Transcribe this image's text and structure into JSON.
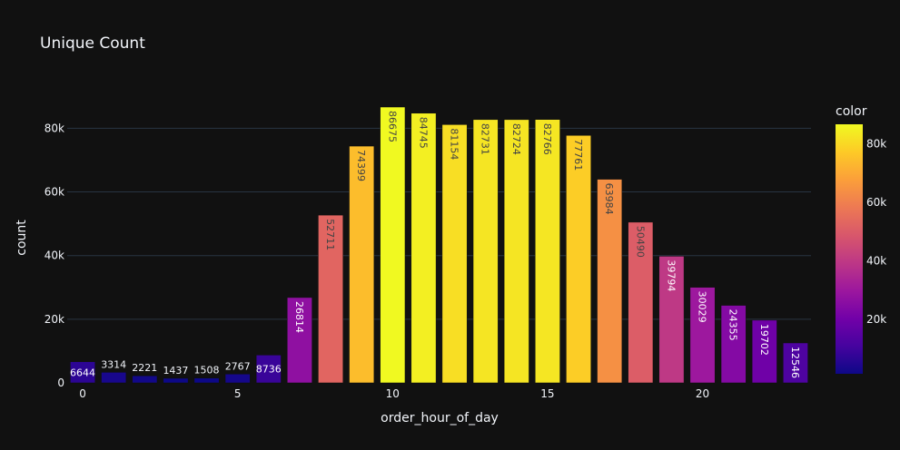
{
  "chart_data": {
    "type": "bar",
    "title": "Unique Count",
    "xlabel": "order_hour_of_day",
    "ylabel": "count",
    "x": [
      0,
      1,
      2,
      3,
      4,
      5,
      6,
      7,
      8,
      9,
      10,
      11,
      12,
      13,
      14,
      15,
      16,
      17,
      18,
      19,
      20,
      21,
      22,
      23
    ],
    "values": [
      6644,
      3314,
      2221,
      1437,
      1508,
      2767,
      8736,
      26814,
      52711,
      74399,
      86675,
      84745,
      81154,
      82731,
      82724,
      82766,
      77761,
      63984,
      50490,
      39794,
      30029,
      24355,
      19702,
      12546
    ],
    "labels": [
      "6644",
      "3314",
      "2221",
      "1437",
      "1508",
      "2767",
      "8736",
      "26814",
      "52711",
      "74399",
      "86675",
      "84745",
      "81154",
      "82731",
      "82724",
      "82766",
      "77761",
      "63984",
      "50490",
      "39794",
      "30029",
      "24355",
      "19702",
      "12546"
    ],
    "xticks": [
      0,
      5,
      10,
      15,
      20
    ],
    "xtick_labels": [
      "0",
      "5",
      "10",
      "15",
      "20"
    ],
    "yticks": [
      0,
      20000,
      40000,
      60000,
      80000
    ],
    "ytick_labels": [
      "0",
      "20k",
      "40k",
      "60k",
      "80k"
    ],
    "xlim": [
      -0.5,
      23.5
    ],
    "ylim": [
      0,
      91237
    ],
    "grid": true,
    "colorbar": {
      "title": "color",
      "range": [
        1437,
        86675
      ],
      "ticks": [
        20000,
        40000,
        60000,
        80000
      ],
      "tick_labels": [
        "20k",
        "40k",
        "60k",
        "80k"
      ],
      "colorscale": [
        "#0d0887",
        "#46039f",
        "#7201a8",
        "#9c179e",
        "#bd3786",
        "#d8576b",
        "#ed7953",
        "#fb9f3a",
        "#fdca26",
        "#f0f921"
      ]
    },
    "colors": {
      "background": "#111111",
      "grid": "#283442",
      "text": "#f2f5fa",
      "bar_outline": "#111111"
    }
  }
}
